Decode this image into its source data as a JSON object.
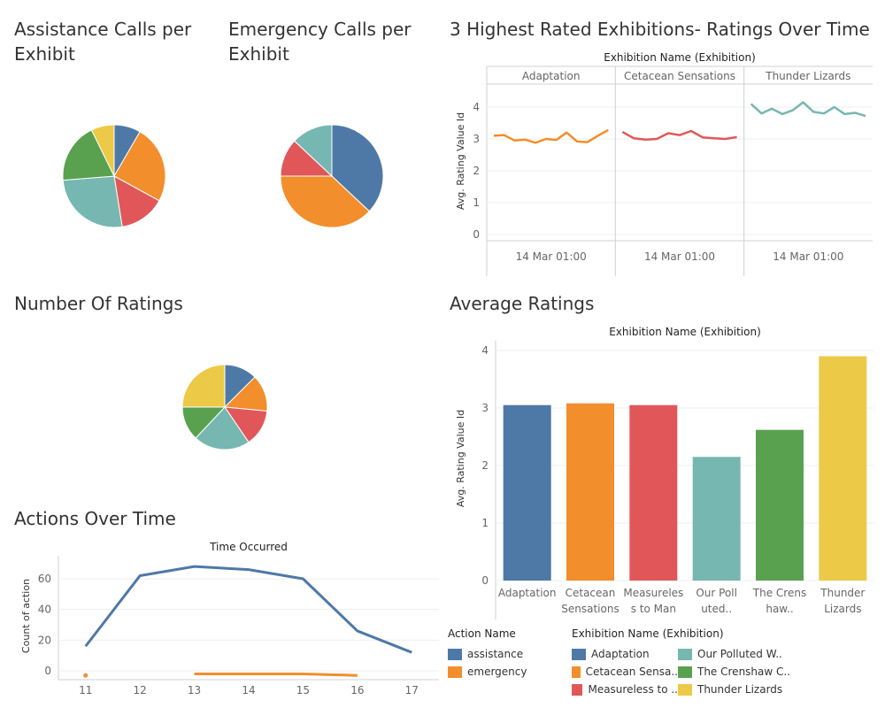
{
  "colors": {
    "blue": "#4e79a7",
    "orange": "#f28e2b",
    "red": "#e15759",
    "teal": "#76b7b2",
    "green": "#59a14f",
    "yellow": "#edc948"
  },
  "titles": {
    "assistance": "Assistance Calls per Exhibit",
    "emergency": "Emergency Calls per Exhibit",
    "top3": "3 Highest Rated Exhibitions- Ratings Over Time",
    "numratings": "Number Of Ratings",
    "avg": "Average Ratings",
    "actions": "Actions Over Time"
  },
  "chart_data": [
    {
      "id": "assistance_pie",
      "type": "pie",
      "title": "Assistance Calls per Exhibit",
      "slices": [
        {
          "label": "Adaptation",
          "value": 7.5,
          "color": "blue"
        },
        {
          "label": "Cetacean Sensations",
          "value": 22,
          "color": "orange"
        },
        {
          "label": "Measureless to Man",
          "value": 13,
          "color": "red"
        },
        {
          "label": "Our Polluted Waters",
          "value": 23.5,
          "color": "teal"
        },
        {
          "label": "The Crenshaw Collection",
          "value": 17,
          "color": "green"
        },
        {
          "label": "Thunder Lizards",
          "value": 6.5,
          "color": "yellow"
        }
      ]
    },
    {
      "id": "emergency_pie",
      "type": "pie",
      "title": "Emergency Calls per Exhibit",
      "slices": [
        {
          "label": "Adaptation",
          "value": 37,
          "color": "blue"
        },
        {
          "label": "Cetacean Sensations",
          "value": 38,
          "color": "orange"
        },
        {
          "label": "Measureless to Man",
          "value": 12,
          "color": "red"
        },
        {
          "label": "Our Polluted Waters",
          "value": 13,
          "color": "teal"
        }
      ]
    },
    {
      "id": "top3_lines",
      "type": "line",
      "title": "3 Highest Rated Exhibitions- Ratings Over Time",
      "header": "Exhibition Name (Exhibition)",
      "ylabel": "Avg. Rating Value Id",
      "ylim": [
        0,
        4.5
      ],
      "yticks": [
        0,
        1,
        2,
        3,
        4
      ],
      "xtick": "14 Mar 01:00",
      "panels": [
        {
          "name": "Adaptation",
          "color": "orange",
          "values": [
            3.1,
            3.12,
            2.95,
            2.98,
            2.88,
            3.0,
            2.97,
            3.2,
            2.92,
            2.9,
            3.1,
            3.28
          ]
        },
        {
          "name": "Cetacean Sensations",
          "color": "red",
          "values": [
            3.22,
            3.02,
            2.98,
            3.0,
            3.18,
            3.12,
            3.25,
            3.05,
            3.02,
            3.0,
            3.06
          ]
        },
        {
          "name": "Thunder Lizards",
          "color": "teal",
          "values": [
            4.1,
            3.8,
            3.95,
            3.78,
            3.9,
            4.15,
            3.85,
            3.8,
            4.0,
            3.78,
            3.82,
            3.72
          ]
        }
      ]
    },
    {
      "id": "numratings_pie",
      "type": "pie",
      "title": "Number Of Ratings",
      "slices": [
        {
          "label": "Adaptation",
          "value": 12.5,
          "color": "blue"
        },
        {
          "label": "Cetacean Sensations",
          "value": 14,
          "color": "orange"
        },
        {
          "label": "Measureless to Man",
          "value": 14,
          "color": "red"
        },
        {
          "label": "Our Polluted Waters",
          "value": 21.5,
          "color": "teal"
        },
        {
          "label": "The Crenshaw Collection",
          "value": 13,
          "color": "green"
        },
        {
          "label": "Thunder Lizards",
          "value": 25,
          "color": "yellow"
        }
      ]
    },
    {
      "id": "avg_bars",
      "type": "bar",
      "title": "Average Ratings",
      "header": "Exhibition Name (Exhibition)",
      "ylabel": "Avg. Rating Value Id",
      "ylim": [
        0,
        4.2
      ],
      "yticks": [
        0,
        1,
        2,
        3,
        4
      ],
      "categories": [
        [
          "Adaptation"
        ],
        [
          "Cetacean",
          "Sensations"
        ],
        [
          "Measureles",
          "s to Man"
        ],
        [
          "Our Poll",
          "uted.."
        ],
        [
          "The Crens",
          "haw.."
        ],
        [
          "Thunder",
          "Lizards"
        ]
      ],
      "values": [
        3.05,
        3.08,
        3.05,
        2.15,
        2.62,
        3.9
      ],
      "colors": [
        "blue",
        "orange",
        "red",
        "teal",
        "green",
        "yellow"
      ]
    },
    {
      "id": "actions_lines",
      "type": "line",
      "title": "Actions Over Time",
      "header": "Time Occurred",
      "ylabel": "Count of action",
      "ylim": [
        0,
        70
      ],
      "yticks": [
        0,
        20,
        40,
        60
      ],
      "x": [
        11,
        12,
        13,
        14,
        15,
        16,
        17
      ],
      "series": [
        {
          "name": "assistance",
          "color": "blue",
          "x": [
            11,
            12,
            13,
            14,
            15,
            16,
            17
          ],
          "values": [
            16,
            62,
            68,
            66,
            60,
            26,
            12
          ]
        },
        {
          "name": "emergency",
          "color": "orange",
          "x": [
            13,
            14,
            15,
            16
          ],
          "values": [
            -2,
            -2,
            -2,
            -3
          ],
          "extra_point": {
            "x": 11,
            "y": -3
          }
        }
      ]
    }
  ],
  "legends": {
    "action": {
      "title": "Action Name",
      "items": [
        {
          "label": "assistance",
          "color": "blue"
        },
        {
          "label": "emergency",
          "color": "orange"
        }
      ]
    },
    "exhibition": {
      "title": "Exhibition Name (Exhibition)",
      "items": [
        {
          "label": "Adaptation",
          "color": "blue"
        },
        {
          "label": "Our Polluted W..",
          "color": "teal"
        },
        {
          "label": "Cetacean Sensa..",
          "color": "orange"
        },
        {
          "label": "The Crenshaw C..",
          "color": "green"
        },
        {
          "label": "Measureless to ..",
          "color": "red"
        },
        {
          "label": "Thunder Lizards",
          "color": "yellow"
        }
      ]
    }
  }
}
